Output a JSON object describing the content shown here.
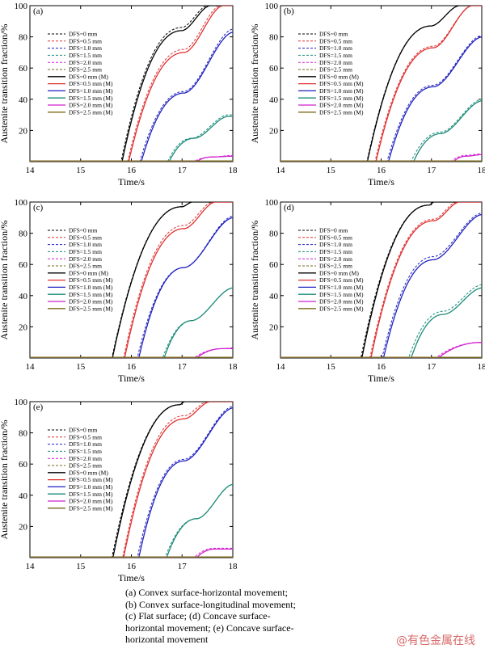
{
  "caption": [
    "(a)  Convex  surface-horizontal  movement;",
    "(b)  Convex  surface-longitudinal  movement;",
    "(c)   Flat   surface;   (d)   Concave   surface-",
    "horizontal  movement;  (e)  Concave  surface-",
    "horizontal movement"
  ],
  "watermark": "@有色金属在线",
  "chart_data": [
    {
      "panel": "(a)",
      "type": "line",
      "xlabel": "Time/s",
      "ylabel": "Austenite transition fraction/%",
      "xlim": [
        14,
        18
      ],
      "ylim": [
        0,
        100
      ],
      "xticks": [
        14,
        15,
        16,
        17,
        18
      ],
      "yticks": [
        20,
        40,
        60,
        80,
        100
      ],
      "legend_placement": "top-left",
      "series": [
        {
          "name": "DFS=0 mm",
          "color": "#000000",
          "dashed": true,
          "onset": 15.8,
          "p1": 86,
          "t1": 17.0,
          "p2": 100,
          "t2": 17.5
        },
        {
          "name": "DFS=0.5 mm",
          "color": "#e03030",
          "dashed": true,
          "onset": 15.93,
          "p1": 72,
          "t1": 17.05,
          "p2": 100,
          "t2": 17.75
        },
        {
          "name": "DFS=1.0 mm",
          "color": "#2020c0",
          "dashed": true,
          "onset": 16.17,
          "p1": 45,
          "t1": 17.05,
          "p2": 85,
          "t2": 18.0
        },
        {
          "name": "DFS=1.5 mm",
          "color": "#1a8a7a",
          "dashed": true,
          "onset": 16.72,
          "p1": 15,
          "t1": 17.2,
          "p2": 30,
          "t2": 17.9
        },
        {
          "name": "DFS=2.0 mm",
          "color": "#d020d0",
          "dashed": true,
          "onset": 17.25,
          "p1": 3,
          "t1": 17.6,
          "p2": 4,
          "t2": 18.0
        },
        {
          "name": "DFS=2.5 mm",
          "color": "#7a6a1a",
          "dashed": true,
          "onset": 18.5,
          "p1": 0,
          "t1": 18.5,
          "p2": 0,
          "t2": 18.5
        },
        {
          "name": "DFS=0 mm (M)",
          "color": "#000000",
          "dashed": false,
          "onset": 15.82,
          "p1": 84,
          "t1": 17.0,
          "p2": 100,
          "t2": 17.55
        },
        {
          "name": "DFS=0.5 mm (M)",
          "color": "#e03030",
          "dashed": false,
          "onset": 15.95,
          "p1": 70,
          "t1": 17.05,
          "p2": 100,
          "t2": 17.8
        },
        {
          "name": "DFS=1.0 mm (M)",
          "color": "#2020c0",
          "dashed": false,
          "onset": 16.2,
          "p1": 44,
          "t1": 17.05,
          "p2": 83,
          "t2": 18.0
        },
        {
          "name": "DFS=1.5 mm (M)",
          "color": "#1a8a7a",
          "dashed": false,
          "onset": 16.75,
          "p1": 15,
          "t1": 17.25,
          "p2": 29,
          "t2": 17.9
        },
        {
          "name": "DFS=2.0 mm (M)",
          "color": "#d020d0",
          "dashed": false,
          "onset": 17.3,
          "p1": 3,
          "t1": 17.6,
          "p2": 3.5,
          "t2": 18.0
        },
        {
          "name": "DFS=2.5 mm (M)",
          "color": "#7a6a1a",
          "dashed": false,
          "onset": 18.5,
          "p1": 0,
          "t1": 18.5,
          "p2": 0,
          "t2": 18.5
        }
      ]
    },
    {
      "panel": "(b)",
      "type": "line",
      "xlabel": "Time/s",
      "ylabel": "Austenite transition fraction/%",
      "xlim": [
        14,
        18
      ],
      "ylim": [
        0,
        100
      ],
      "xticks": [
        14,
        15,
        16,
        17,
        18
      ],
      "yticks": [
        20,
        40,
        60,
        80,
        100
      ],
      "legend_placement": "top-left",
      "series": [
        {
          "name": "DFS=0 mm",
          "color": "#000000",
          "dashed": true,
          "onset": 15.72,
          "p1": 87,
          "t1": 17.0,
          "p2": 100,
          "t2": 17.55
        },
        {
          "name": "DFS=0.5 mm",
          "color": "#e03030",
          "dashed": true,
          "onset": 15.88,
          "p1": 74,
          "t1": 17.05,
          "p2": 100,
          "t2": 17.8
        },
        {
          "name": "DFS=1.0 mm",
          "color": "#2020c0",
          "dashed": true,
          "onset": 16.12,
          "p1": 49,
          "t1": 17.05,
          "p2": 81,
          "t2": 18.0
        },
        {
          "name": "DFS=1.5 mm",
          "color": "#1a8a7a",
          "dashed": true,
          "onset": 16.6,
          "p1": 19,
          "t1": 17.2,
          "p2": 40,
          "t2": 18.0
        },
        {
          "name": "DFS=2.0 mm",
          "color": "#d020d0",
          "dashed": true,
          "onset": 17.4,
          "p1": 4,
          "t1": 17.7,
          "p2": 5,
          "t2": 18.0
        },
        {
          "name": "DFS=2.5 mm",
          "color": "#7a6a1a",
          "dashed": true,
          "onset": 18.5,
          "p1": 0,
          "t1": 18.5,
          "p2": 0,
          "t2": 18.5
        },
        {
          "name": "DFS=0 mm (M)",
          "color": "#000000",
          "dashed": false,
          "onset": 15.73,
          "p1": 87,
          "t1": 17.0,
          "p2": 100,
          "t2": 17.55
        },
        {
          "name": "DFS=0.5 mm (M)",
          "color": "#e03030",
          "dashed": false,
          "onset": 15.9,
          "p1": 73,
          "t1": 17.05,
          "p2": 100,
          "t2": 17.8
        },
        {
          "name": "DFS=1.0 mm (M)",
          "color": "#2020c0",
          "dashed": false,
          "onset": 16.15,
          "p1": 48,
          "t1": 17.05,
          "p2": 80,
          "t2": 18.0
        },
        {
          "name": "DFS=1.5 mm (M)",
          "color": "#1a8a7a",
          "dashed": false,
          "onset": 16.65,
          "p1": 18,
          "t1": 17.2,
          "p2": 39,
          "t2": 18.0
        },
        {
          "name": "DFS=2.0 mm (M)",
          "color": "#d020d0",
          "dashed": false,
          "onset": 17.45,
          "p1": 3.5,
          "t1": 17.7,
          "p2": 4.5,
          "t2": 18.0
        },
        {
          "name": "DFS=2.5 mm (M)",
          "color": "#7a6a1a",
          "dashed": false,
          "onset": 18.5,
          "p1": 0,
          "t1": 18.5,
          "p2": 0,
          "t2": 18.5
        }
      ]
    },
    {
      "panel": "(c)",
      "type": "line",
      "xlabel": "Time/s",
      "ylabel": "Austenite transition fraction/%",
      "xlim": [
        14,
        18
      ],
      "ylim": [
        0,
        100
      ],
      "xticks": [
        14,
        15,
        16,
        17,
        18
      ],
      "yticks": [
        20,
        40,
        60,
        80,
        100
      ],
      "legend_placement": "top-left",
      "series": [
        {
          "name": "DFS=0 mm",
          "color": "#000000",
          "dashed": true,
          "onset": 15.62,
          "p1": 97,
          "t1": 17.0,
          "p2": 100,
          "t2": 17.2
        },
        {
          "name": "DFS=0.5 mm",
          "color": "#e03030",
          "dashed": true,
          "onset": 15.85,
          "p1": 85,
          "t1": 17.05,
          "p2": 100,
          "t2": 17.6
        },
        {
          "name": "DFS=1.0 mm",
          "color": "#2020c0",
          "dashed": true,
          "onset": 16.12,
          "p1": 58,
          "t1": 17.05,
          "p2": 91,
          "t2": 18.0
        },
        {
          "name": "DFS=1.5 mm",
          "color": "#1a8a7a",
          "dashed": true,
          "onset": 16.62,
          "p1": 24,
          "t1": 17.2,
          "p2": 45,
          "t2": 18.0
        },
        {
          "name": "DFS=2.0 mm",
          "color": "#d020d0",
          "dashed": true,
          "onset": 17.25,
          "p1": 6,
          "t1": 17.8,
          "p2": 6.5,
          "t2": 18.0
        },
        {
          "name": "DFS=2.5 mm",
          "color": "#7a6a1a",
          "dashed": true,
          "onset": 18.5,
          "p1": 0,
          "t1": 18.5,
          "p2": 0,
          "t2": 18.5
        },
        {
          "name": "DFS=0 mm (M)",
          "color": "#000000",
          "dashed": false,
          "onset": 15.63,
          "p1": 97,
          "t1": 17.0,
          "p2": 100,
          "t2": 17.2
        },
        {
          "name": "DFS=0.5 mm (M)",
          "color": "#e03030",
          "dashed": false,
          "onset": 15.87,
          "p1": 83,
          "t1": 17.05,
          "p2": 100,
          "t2": 17.65
        },
        {
          "name": "DFS=1.0 mm (M)",
          "color": "#2020c0",
          "dashed": false,
          "onset": 16.15,
          "p1": 58,
          "t1": 17.05,
          "p2": 90,
          "t2": 18.0
        },
        {
          "name": "DFS=1.5 mm (M)",
          "color": "#1a8a7a",
          "dashed": false,
          "onset": 16.65,
          "p1": 24,
          "t1": 17.2,
          "p2": 45,
          "t2": 18.0
        },
        {
          "name": "DFS=2.0 mm (M)",
          "color": "#d020d0",
          "dashed": false,
          "onset": 17.3,
          "p1": 6,
          "t1": 17.8,
          "p2": 6,
          "t2": 18.0
        },
        {
          "name": "DFS=2.5 mm (M)",
          "color": "#7a6a1a",
          "dashed": false,
          "onset": 18.5,
          "p1": 0,
          "t1": 18.5,
          "p2": 0,
          "t2": 18.5
        }
      ]
    },
    {
      "panel": "(d)",
      "type": "line",
      "xlabel": "Time/s",
      "ylabel": "Austenite transition fraction/%",
      "xlim": [
        14,
        18
      ],
      "ylim": [
        0,
        100
      ],
      "xticks": [
        14,
        15,
        16,
        17,
        18
      ],
      "yticks": [
        20,
        40,
        60,
        80,
        100
      ],
      "legend_placement": "top-left",
      "series": [
        {
          "name": "DFS=0 mm",
          "color": "#000000",
          "dashed": true,
          "onset": 15.6,
          "p1": 98,
          "t1": 16.95,
          "p2": 100,
          "t2": 17.05
        },
        {
          "name": "DFS=0.5 mm",
          "color": "#e03030",
          "dashed": true,
          "onset": 15.78,
          "p1": 89,
          "t1": 17.05,
          "p2": 100,
          "t2": 17.5
        },
        {
          "name": "DFS=1.0 mm",
          "color": "#2020c0",
          "dashed": true,
          "onset": 16.02,
          "p1": 65,
          "t1": 17.05,
          "p2": 93,
          "t2": 18.0
        },
        {
          "name": "DFS=1.5 mm",
          "color": "#1a8a7a",
          "dashed": true,
          "onset": 16.55,
          "p1": 30,
          "t1": 17.25,
          "p2": 47,
          "t2": 18.0
        },
        {
          "name": "DFS=2.0 mm",
          "color": "#d020d0",
          "dashed": true,
          "onset": 17.1,
          "p1": 10,
          "t1": 18.0,
          "p2": 10,
          "t2": 18.0
        },
        {
          "name": "DFS=2.5 mm",
          "color": "#7a6a1a",
          "dashed": true,
          "onset": 18.5,
          "p1": 0,
          "t1": 18.5,
          "p2": 0,
          "t2": 18.5
        },
        {
          "name": "DFS=0 mm (M)",
          "color": "#000000",
          "dashed": false,
          "onset": 15.62,
          "p1": 98,
          "t1": 16.95,
          "p2": 100,
          "t2": 17.05
        },
        {
          "name": "DFS=0.5 mm (M)",
          "color": "#e03030",
          "dashed": false,
          "onset": 15.8,
          "p1": 88,
          "t1": 17.05,
          "p2": 100,
          "t2": 17.55
        },
        {
          "name": "DFS=1.0 mm (M)",
          "color": "#2020c0",
          "dashed": false,
          "onset": 16.05,
          "p1": 63,
          "t1": 17.05,
          "p2": 92,
          "t2": 18.0
        },
        {
          "name": "DFS=1.5 mm (M)",
          "color": "#1a8a7a",
          "dashed": false,
          "onset": 16.6,
          "p1": 28,
          "t1": 17.25,
          "p2": 45,
          "t2": 18.0
        },
        {
          "name": "DFS=2.0 mm (M)",
          "color": "#d020d0",
          "dashed": false,
          "onset": 17.15,
          "p1": 10,
          "t1": 18.0,
          "p2": 10,
          "t2": 18.0
        },
        {
          "name": "DFS=2.5 mm (M)",
          "color": "#7a6a1a",
          "dashed": false,
          "onset": 18.5,
          "p1": 0,
          "t1": 18.5,
          "p2": 0,
          "t2": 18.5
        }
      ]
    },
    {
      "panel": "(e)",
      "type": "line",
      "xlabel": "Time/s",
      "ylabel": "Austenite transition fraction/%",
      "xlim": [
        14,
        18
      ],
      "ylim": [
        0,
        100
      ],
      "xticks": [
        14,
        15,
        16,
        17,
        18
      ],
      "yticks": [
        20,
        40,
        60,
        80,
        100
      ],
      "legend_placement": "top-left",
      "series": [
        {
          "name": "DFS=0 mm",
          "color": "#000000",
          "dashed": true,
          "onset": 15.62,
          "p1": 98,
          "t1": 16.95,
          "p2": 100,
          "t2": 17.05
        },
        {
          "name": "DFS=0.5 mm",
          "color": "#e03030",
          "dashed": true,
          "onset": 15.83,
          "p1": 91,
          "t1": 17.05,
          "p2": 100,
          "t2": 17.5
        },
        {
          "name": "DFS=1.0 mm",
          "color": "#2020c0",
          "dashed": true,
          "onset": 16.12,
          "p1": 63,
          "t1": 17.05,
          "p2": 97,
          "t2": 18.0
        },
        {
          "name": "DFS=1.5 mm",
          "color": "#1a8a7a",
          "dashed": true,
          "onset": 16.67,
          "p1": 25,
          "t1": 17.3,
          "p2": 47,
          "t2": 18.0
        },
        {
          "name": "DFS=2.0 mm",
          "color": "#d020d0",
          "dashed": true,
          "onset": 17.25,
          "p1": 6,
          "t1": 17.65,
          "p2": 6,
          "t2": 18.0
        },
        {
          "name": "DFS=2.5 mm",
          "color": "#7a6a1a",
          "dashed": true,
          "onset": 18.5,
          "p1": 0,
          "t1": 18.5,
          "p2": 0,
          "t2": 18.5
        },
        {
          "name": "DFS=0 mm (M)",
          "color": "#000000",
          "dashed": false,
          "onset": 15.64,
          "p1": 98,
          "t1": 16.95,
          "p2": 100,
          "t2": 17.05
        },
        {
          "name": "DFS=0.5 mm (M)",
          "color": "#e03030",
          "dashed": false,
          "onset": 15.85,
          "p1": 89,
          "t1": 17.05,
          "p2": 100,
          "t2": 17.55
        },
        {
          "name": "DFS=1.0 mm (M)",
          "color": "#2020c0",
          "dashed": false,
          "onset": 16.15,
          "p1": 62,
          "t1": 17.05,
          "p2": 96,
          "t2": 18.0
        },
        {
          "name": "DFS=1.5 mm (M)",
          "color": "#1a8a7a",
          "dashed": false,
          "onset": 16.7,
          "p1": 25,
          "t1": 17.3,
          "p2": 47,
          "t2": 18.0
        },
        {
          "name": "DFS=2.0 mm (M)",
          "color": "#d020d0",
          "dashed": false,
          "onset": 17.3,
          "p1": 5.5,
          "t1": 17.65,
          "p2": 5.5,
          "t2": 18.0
        },
        {
          "name": "DFS=2.5 mm (M)",
          "color": "#7a6a1a",
          "dashed": false,
          "onset": 18.5,
          "p1": 0,
          "t1": 18.5,
          "p2": 0,
          "t2": 18.5
        }
      ]
    }
  ]
}
